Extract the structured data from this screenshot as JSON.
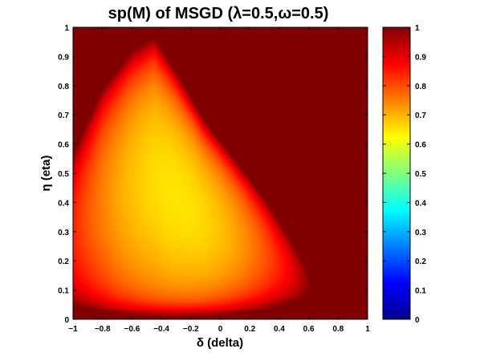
{
  "chart_data": {
    "type": "heatmap",
    "title": "sp(M) of MSGD (λ=0.5,ω=0.5)",
    "xlabel": "δ (delta)",
    "ylabel": "η (eta)",
    "xlim": [
      -1,
      1
    ],
    "ylim": [
      0,
      1
    ],
    "x_ticks": [
      "−1",
      "−0.8",
      "−0.6",
      "−0.4",
      "−0.2",
      "0",
      "0.2",
      "0.4",
      "0.6",
      "0.8",
      "1"
    ],
    "y_ticks": [
      "0",
      "0.1",
      "0.2",
      "0.3",
      "0.4",
      "0.5",
      "0.6",
      "0.7",
      "0.8",
      "0.9",
      "1"
    ],
    "colorbar": {
      "colormap": "jet",
      "range": [
        0,
        1
      ],
      "ticks": [
        "0",
        "0.1",
        "0.2",
        "0.3",
        "0.4",
        "0.5",
        "0.6",
        "0.7",
        "0.8",
        "0.9",
        "1"
      ]
    },
    "features": {
      "saturated_value": 1.0,
      "min_value_approx": 0.65,
      "min_location": {
        "delta": -0.3,
        "eta": 0.42
      },
      "region_below_one_top_edge_eta": [
        {
          "delta": -1.0,
          "eta": 0.62
        },
        {
          "delta": -0.8,
          "eta": 0.82
        },
        {
          "delta": -0.6,
          "eta": 0.93
        },
        {
          "delta": -0.45,
          "eta": 0.97
        },
        {
          "delta": -0.3,
          "eta": 0.85
        },
        {
          "delta": -0.1,
          "eta": 0.68
        },
        {
          "delta": 0.1,
          "eta": 0.56
        },
        {
          "delta": 0.3,
          "eta": 0.44
        },
        {
          "delta": 0.5,
          "eta": 0.3
        },
        {
          "delta": 0.7,
          "eta": 0.15
        },
        {
          "delta": 0.85,
          "eta": 0.05
        },
        {
          "delta": 0.9,
          "eta": 0.0
        }
      ]
    }
  }
}
